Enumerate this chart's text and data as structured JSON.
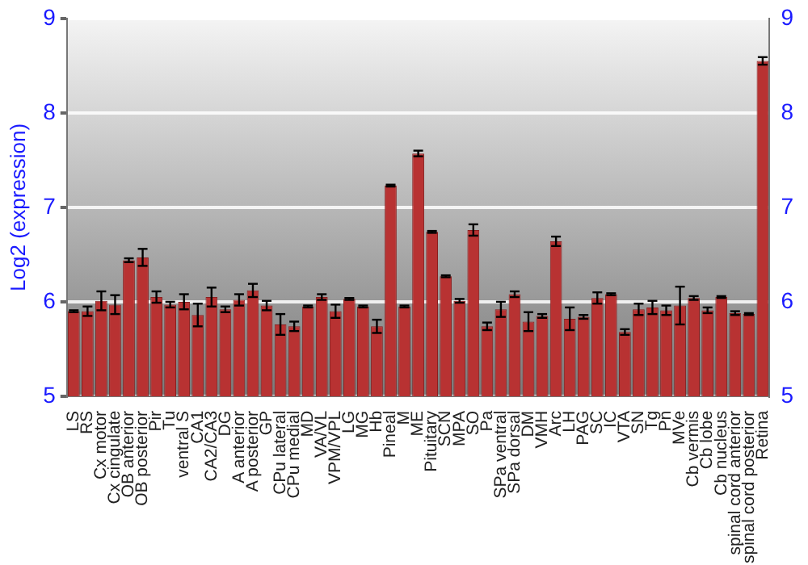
{
  "chart_data": {
    "type": "bar",
    "ylabel": "Log2 (expression)",
    "categories": [
      "LS",
      "RS",
      "Cx motor",
      "Cx cingulate",
      "OB anterior",
      "OB posterior",
      "Pir",
      "Tu",
      "ventral S",
      "CA1",
      "CA2/CA3",
      "DG",
      "A anterior",
      "A posterior",
      "GP",
      "CPu lateral",
      "CPu medial",
      "MD",
      "VA/VL",
      "VPM/VPL",
      "LG",
      "MG",
      "Hb",
      "Pineal",
      "M",
      "ME",
      "Pituitary",
      "SCN",
      "MPA",
      "SO",
      "Pa",
      "SPa ventral",
      "SPa dorsal",
      "DM",
      "VMH",
      "Arc",
      "LH",
      "PAG",
      "SC",
      "IC",
      "VTA",
      "SN",
      "Tg",
      "Pn",
      "MVe",
      "Cb vermis",
      "Cb lobe",
      "Cb nucleus",
      "spinal cord anterior",
      "spinal cord posterior",
      "Retina"
    ],
    "values": [
      5.9,
      5.9,
      6.01,
      5.97,
      6.44,
      6.47,
      6.05,
      5.97,
      6.0,
      5.86,
      6.05,
      5.92,
      6.02,
      6.12,
      5.96,
      5.76,
      5.74,
      5.95,
      6.05,
      5.9,
      6.03,
      5.95,
      5.74,
      7.23,
      5.95,
      7.57,
      6.74,
      6.27,
      6.01,
      6.76,
      5.74,
      5.92,
      6.08,
      5.79,
      5.85,
      6.64,
      5.82,
      5.84,
      6.04,
      6.08,
      5.68,
      5.92,
      5.94,
      5.91,
      5.96,
      6.04,
      5.91,
      6.05,
      5.88,
      5.87,
      8.55
    ],
    "errors": [
      0.01,
      0.05,
      0.1,
      0.1,
      0.02,
      0.09,
      0.06,
      0.03,
      0.08,
      0.12,
      0.1,
      0.03,
      0.06,
      0.07,
      0.05,
      0.11,
      0.05,
      0.01,
      0.03,
      0.07,
      0.01,
      0.01,
      0.07,
      0.01,
      0.01,
      0.03,
      0.01,
      0.01,
      0.02,
      0.06,
      0.04,
      0.08,
      0.03,
      0.1,
      0.02,
      0.05,
      0.12,
      0.02,
      0.06,
      0.01,
      0.03,
      0.06,
      0.07,
      0.05,
      0.2,
      0.02,
      0.03,
      0.01,
      0.02,
      0.01,
      0.04
    ],
    "color": "#b83232",
    "ylim": [
      5,
      9
    ],
    "yticks": [
      5,
      6,
      7,
      8,
      9
    ],
    "y2lim": [
      5,
      9
    ],
    "y2ticks": [
      5,
      6,
      7,
      8,
      9
    ],
    "grid": "y",
    "legend": false
  }
}
